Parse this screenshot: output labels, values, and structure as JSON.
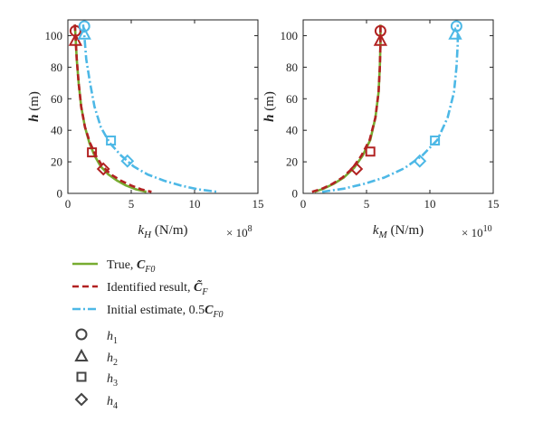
{
  "chart_data": [
    {
      "type": "line",
      "ylabel_var": "h",
      "ylabel_unit": " (m)",
      "xlabel_var": "k",
      "xlabel_sub": "H",
      "xlabel_unit": " (N/m)",
      "x_multiplier_base": "× 10",
      "x_multiplier_exp": "8",
      "xlim": [
        0,
        15
      ],
      "ylim": [
        0,
        110
      ],
      "xticks": [
        0,
        5,
        10,
        15
      ],
      "yticks": [
        0,
        20,
        40,
        60,
        80,
        100
      ],
      "series": [
        {
          "name": "True, C_F0",
          "color": "#77ac30",
          "style": "solid",
          "x": [
            0.55,
            0.6,
            0.7,
            0.85,
            1.05,
            1.35,
            1.7,
            2.1,
            2.6,
            3.2,
            3.9,
            4.6,
            5.4,
            6.2
          ],
          "y": [
            107,
            100,
            85,
            70,
            55,
            42,
            32,
            24,
            17,
            12,
            8,
            5,
            2.5,
            1
          ]
        },
        {
          "name": "Identified result, C̃_F",
          "color": "#b22222",
          "style": "dashed",
          "x": [
            0.55,
            0.6,
            0.7,
            0.85,
            1.05,
            1.35,
            1.75,
            2.2,
            2.75,
            3.4,
            4.2,
            5.0,
            5.8,
            6.6
          ],
          "y": [
            107,
            100,
            85,
            70,
            55,
            42,
            32,
            24,
            17,
            12,
            8,
            5,
            2.5,
            1
          ]
        },
        {
          "name": "Initial estimate, 0.5C_F0",
          "color": "#4db8e6",
          "style": "dashdot",
          "x": [
            1.2,
            1.3,
            1.45,
            1.75,
            2.1,
            2.6,
            3.3,
            4.2,
            5.2,
            6.3,
            7.6,
            8.9,
            10.3,
            11.8
          ],
          "y": [
            107,
            100,
            85,
            70,
            55,
            42,
            32,
            24,
            17,
            12,
            8,
            5,
            2.5,
            1
          ]
        }
      ],
      "markers": [
        {
          "shape": "circle",
          "series": 0,
          "x": 0.6,
          "y": 103
        },
        {
          "shape": "triangle",
          "series": 0,
          "x": 0.6,
          "y": 97
        },
        {
          "shape": "square",
          "series": 0,
          "x": 1.9,
          "y": 26
        },
        {
          "shape": "diamond",
          "series": 0,
          "x": 2.8,
          "y": 15.5
        },
        {
          "shape": "circle",
          "series": 2,
          "x": 1.3,
          "y": 106
        },
        {
          "shape": "triangle",
          "series": 2,
          "x": 1.3,
          "y": 101
        },
        {
          "shape": "square",
          "series": 2,
          "x": 3.4,
          "y": 33.5
        },
        {
          "shape": "diamond",
          "series": 2,
          "x": 4.7,
          "y": 20.5
        }
      ]
    },
    {
      "type": "line",
      "ylabel_var": "h",
      "ylabel_unit": " (m)",
      "xlabel_var": "k",
      "xlabel_sub": "M",
      "xlabel_unit": " (N/m)",
      "x_multiplier_base": "× 10",
      "x_multiplier_exp": "10",
      "xlim": [
        0,
        15
      ],
      "ylim": [
        0,
        110
      ],
      "xticks": [
        0,
        5,
        10,
        15
      ],
      "yticks": [
        0,
        20,
        40,
        60,
        80,
        100
      ],
      "series": [
        {
          "name": "True, C_F0",
          "color": "#77ac30",
          "style": "solid",
          "x": [
            0.9,
            1.6,
            2.4,
            3.2,
            4.0,
            4.7,
            5.3,
            5.7,
            5.95,
            6.05,
            6.1,
            6.1
          ],
          "y": [
            1,
            3,
            6,
            10,
            16,
            24,
            34,
            48,
            64,
            80,
            95,
            107
          ]
        },
        {
          "name": "Identified result, C̃_F",
          "color": "#b22222",
          "style": "dashed",
          "x": [
            0.7,
            1.5,
            2.3,
            3.1,
            3.9,
            4.6,
            5.25,
            5.7,
            5.95,
            6.05,
            6.1,
            6.1
          ],
          "y": [
            1,
            3,
            6,
            10,
            16,
            24,
            34,
            48,
            64,
            80,
            95,
            107
          ]
        },
        {
          "name": "Initial estimate, 0.5C_F0",
          "color": "#4db8e6",
          "style": "dashdot",
          "x": [
            1.5,
            3.2,
            4.8,
            6.4,
            8.0,
            9.4,
            10.6,
            11.4,
            11.9,
            12.1,
            12.2,
            12.2
          ],
          "y": [
            1,
            3,
            6,
            10,
            16,
            24,
            34,
            48,
            64,
            80,
            95,
            107
          ]
        }
      ],
      "markers": [
        {
          "shape": "circle",
          "series": 0,
          "x": 6.1,
          "y": 103
        },
        {
          "shape": "triangle",
          "series": 0,
          "x": 6.1,
          "y": 97
        },
        {
          "shape": "square",
          "series": 0,
          "x": 5.3,
          "y": 26.5
        },
        {
          "shape": "diamond",
          "series": 0,
          "x": 4.2,
          "y": 15.5
        },
        {
          "shape": "circle",
          "series": 2,
          "x": 12.1,
          "y": 106
        },
        {
          "shape": "triangle",
          "series": 2,
          "x": 12.0,
          "y": 101
        },
        {
          "shape": "square",
          "series": 2,
          "x": 10.4,
          "y": 33.5
        },
        {
          "shape": "diamond",
          "series": 2,
          "x": 9.2,
          "y": 20.5
        }
      ]
    }
  ],
  "legend": {
    "entries": [
      {
        "kind": "line",
        "style": "solid",
        "color": "#77ac30",
        "text": "True, ",
        "bold": "C",
        "sub": "F0"
      },
      {
        "kind": "line",
        "style": "dashed",
        "color": "#b22222",
        "text": "Identified result, ",
        "bold": "C̃",
        "sub": "F"
      },
      {
        "kind": "line",
        "style": "dashdot",
        "color": "#4db8e6",
        "text": "Initial estimate, 0.5",
        "bold": "C",
        "sub": "F0"
      },
      {
        "kind": "marker",
        "shape": "circle",
        "var": "h",
        "sub": "1"
      },
      {
        "kind": "marker",
        "shape": "triangle",
        "var": "h",
        "sub": "2"
      },
      {
        "kind": "marker",
        "shape": "square",
        "var": "h",
        "sub": "3"
      },
      {
        "kind": "marker",
        "shape": "diamond",
        "var": "h",
        "sub": "4"
      }
    ],
    "marker_color": "#444444"
  }
}
